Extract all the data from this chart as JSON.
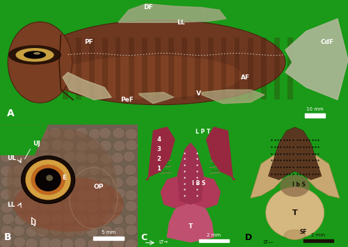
{
  "green_bg": "#1a9a18",
  "panel_layout": {
    "A": [
      0.0,
      0.495,
      1.0,
      0.505
    ],
    "B": [
      0.0,
      0.0,
      0.4,
      0.495
    ],
    "C": [
      0.395,
      0.0,
      0.305,
      0.495
    ],
    "D": [
      0.695,
      0.0,
      0.305,
      0.495
    ]
  },
  "border_color": "#ffffff",
  "label_color": "#ffffff",
  "label_fontsize": 9,
  "ann_fontsize": 6.5,
  "scalebar_fontsize": 5.5
}
